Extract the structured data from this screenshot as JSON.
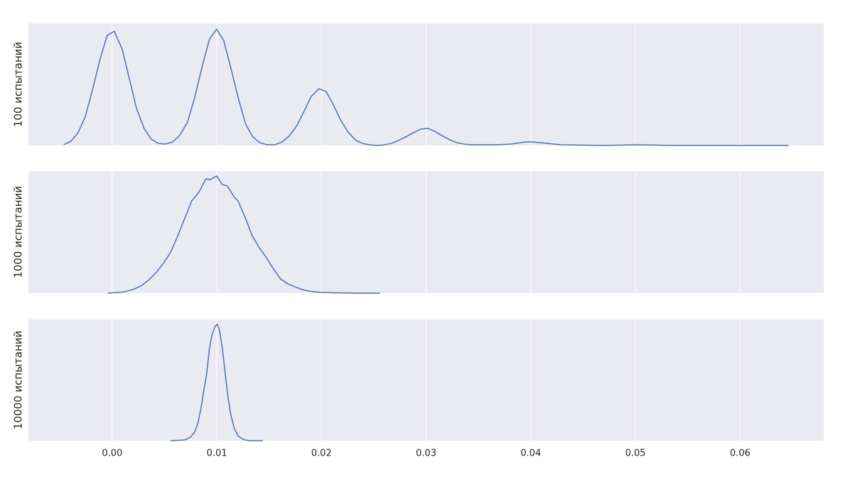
{
  "chart_data": [
    {
      "type": "line",
      "ylabel": "100 испытаний",
      "color": "#4c72b0",
      "ylim": [
        0,
        1
      ],
      "x": [
        -0.00462,
        -0.00394,
        -0.00326,
        -0.00258,
        -0.0019,
        -0.00115,
        -0.00048,
        0.0002,
        0.00095,
        0.00163,
        0.00231,
        0.00305,
        0.00373,
        0.00441,
        0.00509,
        0.00577,
        0.00645,
        0.0072,
        0.00788,
        0.00856,
        0.0093,
        0.00998,
        0.01066,
        0.01134,
        0.01208,
        0.01276,
        0.01344,
        0.01412,
        0.0148,
        0.01555,
        0.01623,
        0.0169,
        0.01765,
        0.01833,
        0.01901,
        0.01976,
        0.02044,
        0.02112,
        0.02179,
        0.02254,
        0.02322,
        0.0239,
        0.02458,
        0.02533,
        0.02601,
        0.02668,
        0.02736,
        0.02804,
        0.02879,
        0.02947,
        0.03015,
        0.03083,
        0.0315,
        0.03225,
        0.03293,
        0.03361,
        0.03429,
        0.0368,
        0.03816,
        0.03951,
        0.04019,
        0.04155,
        0.0429,
        0.04698,
        0.05037,
        0.05377,
        0.06463
      ],
      "values": [
        0.006,
        0.035,
        0.105,
        0.233,
        0.448,
        0.709,
        0.901,
        0.936,
        0.791,
        0.552,
        0.308,
        0.14,
        0.052,
        0.017,
        0.012,
        0.029,
        0.081,
        0.192,
        0.39,
        0.634,
        0.872,
        0.953,
        0.86,
        0.634,
        0.378,
        0.174,
        0.07,
        0.023,
        0.006,
        0.006,
        0.029,
        0.076,
        0.163,
        0.279,
        0.401,
        0.465,
        0.442,
        0.337,
        0.215,
        0.11,
        0.047,
        0.017,
        0.006,
        0,
        0.006,
        0.017,
        0.041,
        0.07,
        0.105,
        0.134,
        0.14,
        0.116,
        0.081,
        0.047,
        0.023,
        0.012,
        0.006,
        0.006,
        0.012,
        0.029,
        0.029,
        0.017,
        0.006,
        0,
        0.006,
        0,
        0
      ]
    },
    {
      "type": "line",
      "ylabel": "1000 испытаний",
      "color": "#4c72b0",
      "ylim": [
        0,
        1
      ],
      "x": [
        -0.00041,
        0.00081,
        0.00149,
        0.00217,
        0.00285,
        0.00353,
        0.00421,
        0.00489,
        0.00557,
        0.00625,
        0.00692,
        0.00726,
        0.0076,
        0.00828,
        0.00896,
        0.00937,
        0.00998,
        0.01052,
        0.011,
        0.01168,
        0.01202,
        0.0127,
        0.01337,
        0.01405,
        0.01473,
        0.01541,
        0.01609,
        0.01677,
        0.01745,
        0.01813,
        0.01881,
        0.01982,
        0.02118,
        0.02322,
        0.0256
      ],
      "values": [
        0,
        0.006,
        0.017,
        0.035,
        0.064,
        0.11,
        0.169,
        0.244,
        0.331,
        0.465,
        0.61,
        0.68,
        0.756,
        0.826,
        0.936,
        0.93,
        0.959,
        0.89,
        0.878,
        0.785,
        0.756,
        0.622,
        0.471,
        0.372,
        0.291,
        0.198,
        0.116,
        0.076,
        0.052,
        0.029,
        0.017,
        0.006,
        0.003,
        0,
        0
      ]
    },
    {
      "type": "line",
      "ylabel": "10000 испытаний",
      "color": "#4c72b0",
      "ylim": [
        0,
        1
      ],
      "x": [
        0.00557,
        0.00692,
        0.00747,
        0.00788,
        0.00821,
        0.00849,
        0.00876,
        0.00903,
        0.0093,
        0.00957,
        0.00984,
        0.01005,
        0.01025,
        0.01052,
        0.01079,
        0.01107,
        0.01134,
        0.01168,
        0.01202,
        0.01249,
        0.01303,
        0.01439
      ],
      "values": [
        0,
        0.006,
        0.029,
        0.07,
        0.152,
        0.269,
        0.415,
        0.55,
        0.766,
        0.883,
        0.942,
        0.959,
        0.912,
        0.766,
        0.561,
        0.357,
        0.211,
        0.099,
        0.041,
        0.012,
        0,
        0
      ],
      "xlim": [
        -0.008,
        0.068
      ],
      "grid": true,
      "xticks": [
        {
          "value": 0,
          "label": "0.00"
        },
        {
          "value": 0.01,
          "label": "0.01"
        },
        {
          "value": 0.02,
          "label": "0.02"
        },
        {
          "value": 0.03,
          "label": "0.03"
        },
        {
          "value": 0.04,
          "label": "0.04"
        },
        {
          "value": 0.05,
          "label": "0.05"
        },
        {
          "value": 0.06,
          "label": "0.06"
        }
      ]
    }
  ]
}
